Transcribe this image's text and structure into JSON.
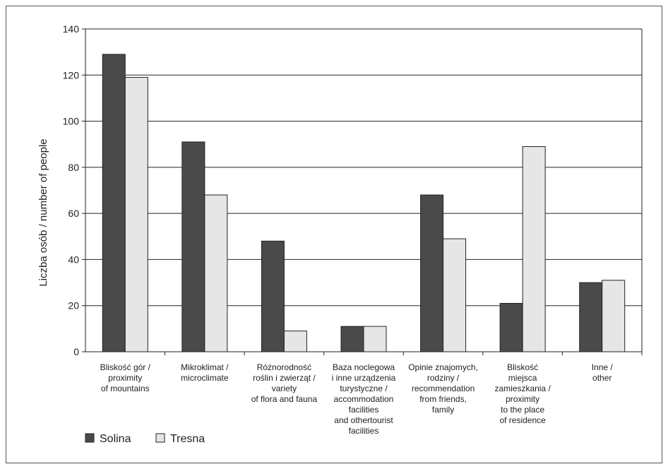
{
  "chart_data": {
    "type": "bar",
    "title": "",
    "ylabel": "Liczba osób / number of people",
    "xlabel": "",
    "ylim": [
      0,
      140
    ],
    "yticks": [
      0,
      20,
      40,
      60,
      80,
      100,
      120,
      140
    ],
    "grid": true,
    "legend_position": "bottom-left",
    "categories": [
      [
        "Bliskość gór /",
        "proximity",
        "of mountains"
      ],
      [
        "Mikroklimat /",
        "microclimate"
      ],
      [
        "Różnorodność",
        "roślin i zwierząt /",
        "variety",
        "of flora and fauna"
      ],
      [
        "Baza noclegowa",
        "i inne urządzenia",
        "turystyczne /",
        "accommodation",
        "facilities",
        "and othertourist",
        "facilities"
      ],
      [
        "Opinie znajomych,",
        "rodziny /",
        "recommendation",
        "from friends,",
        "family"
      ],
      [
        "Bliskość",
        "miejsca",
        "zamieszkania /",
        "proximity",
        "to the place",
        "of residence"
      ],
      [
        "Inne /",
        "other"
      ]
    ],
    "series": [
      {
        "name": "Solina",
        "color": "#4a4a4a",
        "values": [
          129,
          91,
          48,
          11,
          68,
          21,
          30
        ]
      },
      {
        "name": "Tresna",
        "color": "#e6e6e6",
        "values": [
          119,
          68,
          9,
          11,
          49,
          89,
          31
        ]
      }
    ]
  }
}
